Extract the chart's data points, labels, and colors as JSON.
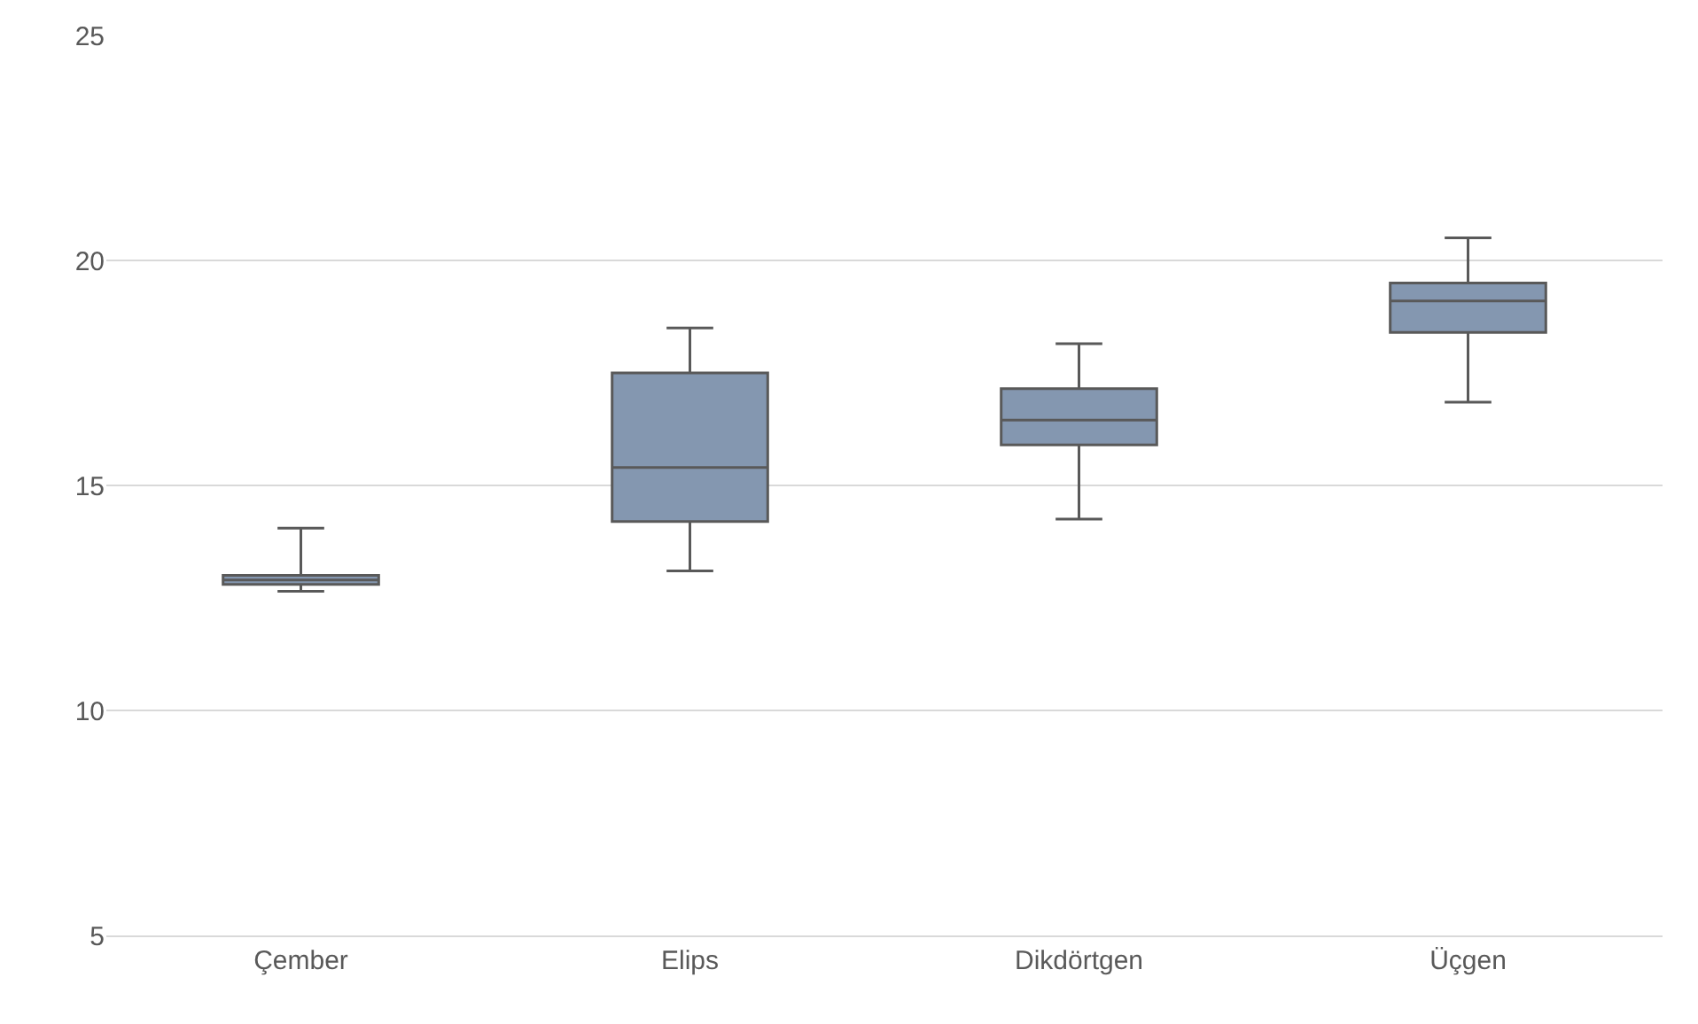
{
  "chart_data": {
    "type": "box",
    "categories": [
      "Çember",
      "Elips",
      "Dikdörtgen",
      "Üçgen"
    ],
    "color": "#8497b0",
    "boxes": [
      {
        "low": 12.65,
        "q1": 12.8,
        "median": 12.9,
        "q3": 13.0,
        "high": 14.05
      },
      {
        "low": 13.1,
        "q1": 14.2,
        "median": 15.4,
        "q3": 17.5,
        "high": 18.5
      },
      {
        "low": 14.25,
        "q1": 15.9,
        "median": 16.45,
        "q3": 17.15,
        "high": 18.15
      },
      {
        "low": 16.85,
        "q1": 18.4,
        "median": 19.1,
        "q3": 19.5,
        "high": 20.5
      }
    ],
    "ylim": [
      5,
      25
    ],
    "yticks": [
      5,
      10,
      15,
      20,
      25
    ],
    "grid": "y"
  }
}
